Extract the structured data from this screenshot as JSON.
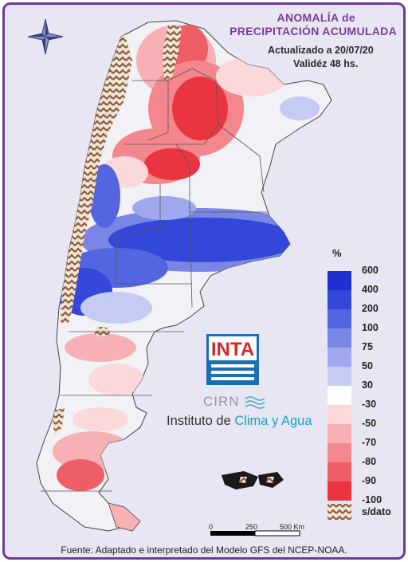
{
  "map": {
    "title_line1": "ANOMALÍA de",
    "title_line2": "PRECIPITACIÓN ACUMULADA",
    "updated": "Actualizado a 20/07/20",
    "validity": "Validéz 48 hs.",
    "region": "Argentina",
    "colors": {
      "water": "#e8e6f2",
      "land_neutral": "#f2f1f6",
      "boundary": "#555555",
      "border_frame": "#6a3d9a",
      "nodata": "#8a5a3a"
    }
  },
  "legend": {
    "unit": "%",
    "items": [
      {
        "label": "600",
        "color": "#1f2fd0"
      },
      {
        "label": "400",
        "color": "#3348d8"
      },
      {
        "label": "200",
        "color": "#5466df"
      },
      {
        "label": "100",
        "color": "#7a86e6"
      },
      {
        "label": "75",
        "color": "#a0a8ee"
      },
      {
        "label": "50",
        "color": "#c6cbf4"
      },
      {
        "label": "30",
        "color": "#e2e5fa"
      },
      {
        "label": "-30",
        "color": "#ffffff"
      },
      {
        "label": "-50",
        "color": "#fbd8da"
      },
      {
        "label": "-70",
        "color": "#f7b0b4"
      },
      {
        "label": "-80",
        "color": "#f3878d"
      },
      {
        "label": "-90",
        "color": "#ef5e66"
      },
      {
        "label": "-100",
        "color": "#ea3540"
      }
    ],
    "nodata_label": "s/dato"
  },
  "logos": {
    "inta": "INTA",
    "cirn": "CIRN",
    "institute_prefix": "Instituto de ",
    "institute_accent": "Clima y Agua"
  },
  "scale_bar": {
    "labels": [
      "0",
      "250",
      "500 Km"
    ]
  },
  "source": "Fuente: Adaptado e interpretado del Modelo GFS del NCEP-NOAA."
}
